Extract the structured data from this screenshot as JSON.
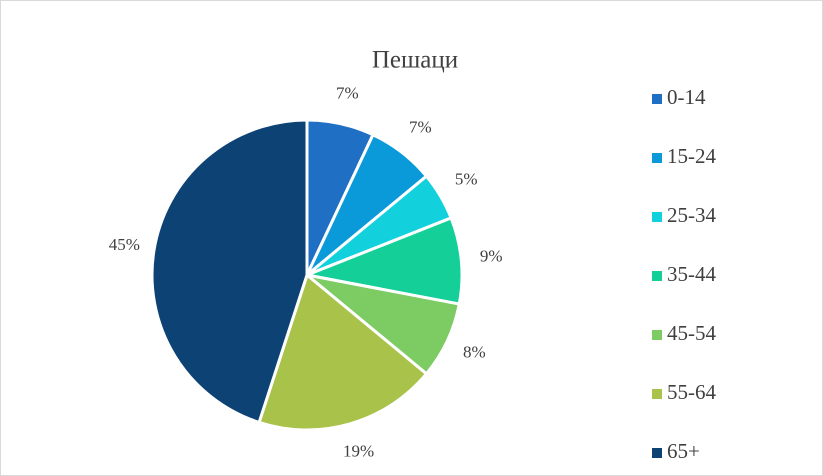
{
  "chart_data": {
    "type": "pie",
    "title": "Пешаци",
    "categories": [
      "0-14",
      "15-24",
      "25-34",
      "35-44",
      "45-54",
      "55-64",
      "65+"
    ],
    "values": [
      7,
      7,
      5,
      9,
      8,
      19,
      45
    ],
    "value_labels": [
      "7%",
      "7%",
      "5%",
      "9%",
      "8%",
      "19%",
      "45%"
    ],
    "colors": [
      "#1f6fc5",
      "#0b9ad9",
      "#12d0dc",
      "#14cf97",
      "#7ccb63",
      "#a8c24a",
      "#0d4275"
    ],
    "legend": "right"
  }
}
